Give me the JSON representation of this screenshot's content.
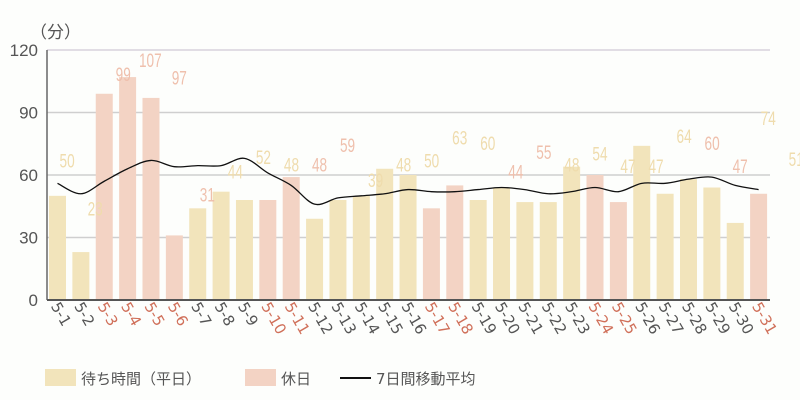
{
  "chart_data": {
    "type": "bar",
    "ylabel": "（分）",
    "ylim": [
      0,
      120
    ],
    "yticks": [
      0,
      30,
      60,
      90,
      120
    ],
    "grid": true,
    "legend_position": "bottom",
    "categories": [
      "5-1",
      "5-2",
      "5-3",
      "5-4",
      "5-5",
      "5-6",
      "5-7",
      "5-8",
      "5-9",
      "5-10",
      "5-11",
      "5-12",
      "5-13",
      "5-14",
      "5-15",
      "5-16",
      "5-17",
      "5-18",
      "5-19",
      "5-20",
      "5-21",
      "5-22",
      "5-23",
      "5-24",
      "5-25",
      "5-26",
      "5-27",
      "5-28",
      "5-29",
      "5-30",
      "5-31"
    ],
    "values": [
      50,
      23,
      99,
      107,
      97,
      31,
      44,
      52,
      48,
      48,
      59,
      39,
      48,
      50,
      63,
      60,
      44,
      55,
      48,
      54,
      47,
      47,
      64,
      60,
      47,
      74,
      51,
      58,
      54,
      37,
      51
    ],
    "holiday": [
      false,
      false,
      true,
      true,
      true,
      true,
      false,
      false,
      false,
      true,
      true,
      false,
      false,
      false,
      false,
      false,
      true,
      true,
      false,
      false,
      false,
      false,
      false,
      true,
      true,
      false,
      false,
      false,
      false,
      false,
      true
    ],
    "moving_average": [
      56,
      51,
      57,
      63,
      67,
      64,
      64.5,
      64.5,
      68,
      61,
      55,
      46,
      49,
      50,
      51,
      53,
      52,
      52,
      53,
      54,
      53,
      51,
      52,
      54,
      52,
      56,
      56,
      58,
      59,
      55,
      53
    ],
    "series": [
      {
        "name": "待ち時間（平日）",
        "color": "#f2e4bb"
      },
      {
        "name": "休日",
        "color": "#f3d3c4"
      },
      {
        "name": "7日間移動平均",
        "color": "#111111"
      }
    ],
    "colors": {
      "weekday_label": "#555555",
      "holiday_label": "#d0705a",
      "weekday_data_label": "#efdcad",
      "holiday_data_label": "#efc0ad"
    }
  }
}
